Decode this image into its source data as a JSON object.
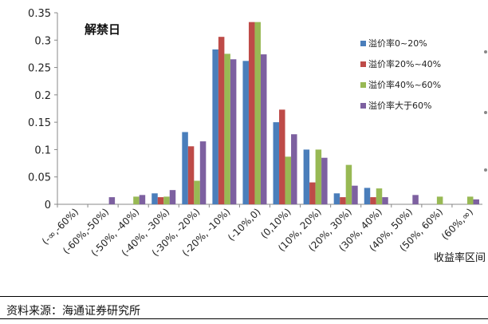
{
  "chart_data": {
    "type": "bar",
    "title": "解禁日",
    "xlabel": "收益率区间",
    "ylabel": "",
    "ylim": [
      0,
      0.35
    ],
    "yticks": [
      "0",
      "0.05",
      "0.1",
      "0.15",
      "0.2",
      "0.25",
      "0.3",
      "0.35"
    ],
    "categories": [
      "(-∞,-60%)",
      "(-60%,-50%)",
      "(-50%, -40%)",
      "(-40%, -30%)",
      "(-30%, -20%)",
      "(-20%, -10%)",
      "(-10%,0)",
      "(0,10%)",
      "(10%, 20%)",
      "(20%, 30%)",
      "(30%, 40%)",
      "(40%, 50%)",
      "(50%, 60%)",
      "(60%,∞)"
    ],
    "series": [
      {
        "name": "溢价率0~20%",
        "color": "#4a7ebb",
        "values": [
          0,
          0,
          0,
          0.02,
          0.132,
          0.283,
          0.262,
          0.15,
          0.1,
          0.02,
          0.03,
          0,
          0,
          0
        ]
      },
      {
        "name": "溢价率20%~40%",
        "color": "#be4b48",
        "values": [
          0,
          0,
          0,
          0.013,
          0.106,
          0.306,
          0.333,
          0.173,
          0.04,
          0.013,
          0.013,
          0,
          0,
          0
        ]
      },
      {
        "name": "溢价率40%~60%",
        "color": "#98b954",
        "values": [
          0,
          0,
          0.014,
          0.014,
          0.043,
          0.275,
          0.333,
          0.087,
          0.1,
          0.072,
          0.029,
          0,
          0.014,
          0.014
        ]
      },
      {
        "name": "溢价率大于60%",
        "color": "#7d60a0",
        "values": [
          0,
          0.013,
          0.017,
          0.026,
          0.115,
          0.265,
          0.274,
          0.128,
          0.085,
          0.034,
          0.013,
          0.017,
          0,
          0.009
        ]
      }
    ],
    "grid": false,
    "legend_position": "right"
  },
  "source": "资料来源：海通证券研究所"
}
